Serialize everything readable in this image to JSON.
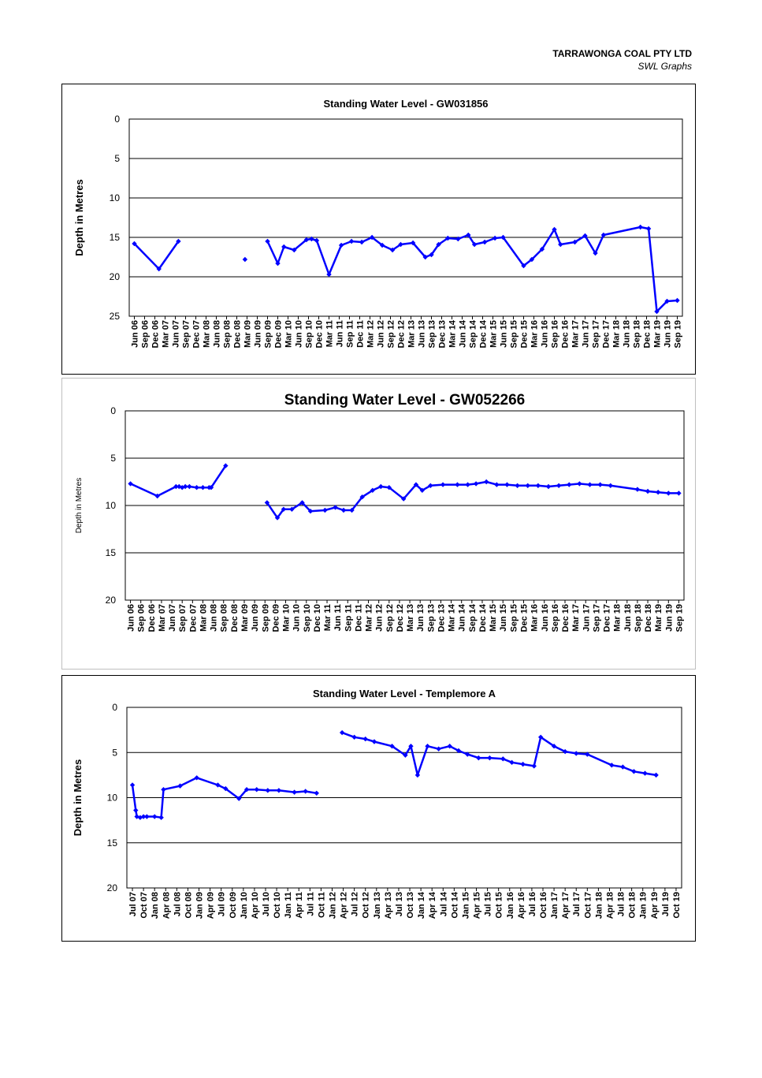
{
  "header": {
    "company": "TARRAWONGA COAL PTY LTD",
    "subtitle": "SWL Graphs"
  },
  "chart_data": [
    {
      "type": "line",
      "title": "Standing Water Level - GW031856",
      "ylabel": "Depth in Metres",
      "xlabel": "",
      "ylim": [
        0,
        25
      ],
      "y_inverted": true,
      "yticks": [
        0,
        5,
        10,
        15,
        20,
        25
      ],
      "grid": true,
      "legend": "none",
      "color": "#0000ff",
      "categories": [
        "Jun 06",
        "Sep 06",
        "Dec 06",
        "Mar 07",
        "Jun 07",
        "Sep 07",
        "Dec 07",
        "Mar 08",
        "Jun 08",
        "Sep 08",
        "Dec 08",
        "Mar 09",
        "Jun 09",
        "Sep 09",
        "Dec 09",
        "Mar 10",
        "Jun 10",
        "Sep 10",
        "Dec 10",
        "Mar 11",
        "Jun 11",
        "Sep 11",
        "Dec 11",
        "Mar 12",
        "Jun 12",
        "Sep 12",
        "Dec 12",
        "Mar 13",
        "Jun 13",
        "Sep 13",
        "Dec 13",
        "Mar 14",
        "Jun 14",
        "Sep 14",
        "Dec 14",
        "Mar 15",
        "Jun 15",
        "Sep 15",
        "Dec 15",
        "Mar 16",
        "Jun 16",
        "Sep 16",
        "Dec 16",
        "Mar 17",
        "Jun 17",
        "Sep 17",
        "Dec 17",
        "Mar 18",
        "Jun 18",
        "Sep 18",
        "Dec 18",
        "Mar 19",
        "Jun 19",
        "Sep 19"
      ],
      "segments": [
        [
          [
            0,
            15.8
          ],
          [
            2.4,
            19.0
          ],
          [
            4.3,
            15.5
          ]
        ],
        [
          [
            10.8,
            17.8
          ]
        ],
        [
          [
            13.0,
            15.5
          ],
          [
            14.0,
            18.3
          ],
          [
            14.6,
            16.2
          ],
          [
            15.6,
            16.6
          ],
          [
            16.8,
            15.3
          ],
          [
            17.3,
            15.2
          ],
          [
            17.8,
            15.4
          ],
          [
            19.0,
            19.7
          ],
          [
            20.2,
            16.0
          ],
          [
            21.2,
            15.5
          ],
          [
            22.2,
            15.6
          ],
          [
            23.2,
            15.0
          ],
          [
            24.2,
            16.0
          ],
          [
            25.2,
            16.6
          ],
          [
            26.0,
            15.9
          ],
          [
            27.2,
            15.7
          ],
          [
            28.4,
            17.5
          ],
          [
            29.0,
            17.2
          ],
          [
            29.7,
            15.9
          ],
          [
            30.6,
            15.1
          ],
          [
            31.6,
            15.2
          ],
          [
            32.6,
            14.7
          ],
          [
            33.2,
            15.9
          ],
          [
            34.2,
            15.6
          ],
          [
            35.2,
            15.1
          ],
          [
            36.0,
            15.0
          ],
          [
            38.0,
            18.6
          ],
          [
            38.8,
            17.8
          ],
          [
            39.8,
            16.5
          ],
          [
            41.0,
            14.0
          ],
          [
            41.6,
            15.9
          ],
          [
            43.0,
            15.6
          ],
          [
            44.0,
            14.8
          ],
          [
            45.0,
            17.0
          ],
          [
            45.8,
            14.7
          ],
          [
            49.4,
            13.7
          ],
          [
            50.2,
            13.9
          ],
          [
            51.0,
            24.4
          ],
          [
            52.0,
            23.1
          ],
          [
            53.0,
            23.0
          ]
        ]
      ]
    },
    {
      "type": "line",
      "title": "Standing Water Level - GW052266",
      "ylabel": "Depth in Metres",
      "xlabel": "",
      "ylim": [
        0,
        20
      ],
      "y_inverted": true,
      "yticks": [
        0,
        5,
        10,
        15,
        20
      ],
      "grid": true,
      "legend": "none",
      "color": "#0000ff",
      "categories": [
        "Jun 06",
        "Sep 06",
        "Dec 06",
        "Mar 07",
        "Jun 07",
        "Sep 07",
        "Dec 07",
        "Mar 08",
        "Jun 08",
        "Sep 08",
        "Dec 08",
        "Mar 09",
        "Jun 09",
        "Sep 09",
        "Dec 09",
        "Mar 10",
        "Jun 10",
        "Sep 10",
        "Dec 10",
        "Mar 11",
        "Jun 11",
        "Sep 11",
        "Dec 11",
        "Mar 12",
        "Jun 12",
        "Sep 12",
        "Dec 12",
        "Mar 13",
        "Jun 13",
        "Sep 13",
        "Dec 13",
        "Mar 14",
        "Jun 14",
        "Sep 14",
        "Dec 14",
        "Mar 15",
        "Jun 15",
        "Sep 15",
        "Dec 15",
        "Mar 16",
        "Jun 16",
        "Sep 16",
        "Dec 16",
        "Mar 17",
        "Jun 17",
        "Sep 17",
        "Dec 17",
        "Mar 18",
        "Jun 18",
        "Sep 18",
        "Dec 18",
        "Mar 19",
        "Jun 19",
        "Sep 19"
      ],
      "segments": [
        [
          [
            0,
            7.7
          ],
          [
            2.6,
            9.0
          ],
          [
            4.4,
            8.0
          ],
          [
            4.7,
            8.0
          ],
          [
            5.0,
            8.1
          ],
          [
            5.3,
            8.0
          ],
          [
            5.7,
            8.0
          ],
          [
            6.4,
            8.1
          ],
          [
            7.0,
            8.1
          ],
          [
            7.6,
            8.1
          ],
          [
            7.8,
            8.1
          ],
          [
            9.2,
            5.8
          ]
        ],
        [
          [
            13.2,
            9.7
          ],
          [
            14.2,
            11.3
          ],
          [
            14.8,
            10.4
          ],
          [
            15.6,
            10.4
          ],
          [
            16.6,
            9.7
          ],
          [
            17.4,
            10.6
          ],
          [
            18.8,
            10.5
          ],
          [
            19.8,
            10.2
          ],
          [
            20.6,
            10.5
          ],
          [
            21.4,
            10.5
          ],
          [
            22.4,
            9.1
          ],
          [
            23.4,
            8.4
          ],
          [
            24.2,
            8.0
          ],
          [
            25.0,
            8.1
          ],
          [
            26.4,
            9.3
          ],
          [
            27.6,
            7.8
          ],
          [
            28.2,
            8.4
          ],
          [
            29.0,
            7.9
          ],
          [
            30.2,
            7.8
          ],
          [
            31.6,
            7.8
          ],
          [
            32.6,
            7.8
          ],
          [
            33.4,
            7.7
          ],
          [
            34.4,
            7.5
          ],
          [
            35.4,
            7.8
          ],
          [
            36.4,
            7.8
          ],
          [
            37.4,
            7.9
          ],
          [
            38.4,
            7.9
          ],
          [
            39.4,
            7.9
          ],
          [
            40.4,
            8.0
          ],
          [
            41.4,
            7.9
          ],
          [
            42.4,
            7.8
          ],
          [
            43.4,
            7.7
          ],
          [
            44.4,
            7.8
          ],
          [
            45.4,
            7.8
          ],
          [
            46.4,
            7.9
          ],
          [
            49.0,
            8.3
          ],
          [
            50.0,
            8.5
          ],
          [
            51.0,
            8.6
          ],
          [
            52.0,
            8.7
          ],
          [
            53.0,
            8.7
          ]
        ]
      ]
    },
    {
      "type": "line",
      "title": "Standing Water Level - Templemore A",
      "ylabel": "Depth in Metres",
      "xlabel": "",
      "ylim": [
        0,
        20
      ],
      "y_inverted": true,
      "yticks": [
        0,
        5,
        10,
        15,
        20
      ],
      "grid": true,
      "legend": "none",
      "color": "#0000ff",
      "categories": [
        "Jul 07",
        "Oct 07",
        "Jan 08",
        "Apr 08",
        "Jul 08",
        "Oct 08",
        "Jan 09",
        "Apr 09",
        "Jul 09",
        "Oct 09",
        "Jan 10",
        "Apr 10",
        "Jul 10",
        "Oct 10",
        "Jan 11",
        "Apr 11",
        "Jul 11",
        "Oct 11",
        "Jan 12",
        "Apr 12",
        "Jul 12",
        "Oct 12",
        "Jan 13",
        "Apr 13",
        "Jul 13",
        "Oct 13",
        "Jan 14",
        "Apr 14",
        "Jul 14",
        "Oct 14",
        "Jan 15",
        "Apr 15",
        "Jul 15",
        "Oct 15",
        "Jan 16",
        "Apr 16",
        "Jul 16",
        "Oct 16",
        "Jan 17",
        "Apr 17",
        "Jul 17",
        "Oct 17",
        "Jan 18",
        "Apr 18",
        "Jul 18",
        "Oct 18",
        "Jan 19",
        "Apr 19",
        "Jul 19",
        "Oct 19"
      ],
      "segments": [
        [
          [
            0,
            8.6
          ],
          [
            0.3,
            11.4
          ],
          [
            0.4,
            12.1
          ],
          [
            0.7,
            12.2
          ],
          [
            1.0,
            12.1
          ],
          [
            1.3,
            12.1
          ],
          [
            2.0,
            12.1
          ],
          [
            2.6,
            12.2
          ],
          [
            2.8,
            9.1
          ],
          [
            4.3,
            8.7
          ],
          [
            5.8,
            7.8
          ],
          [
            7.7,
            8.6
          ],
          [
            8.4,
            9.0
          ],
          [
            9.6,
            10.1
          ],
          [
            10.3,
            9.1
          ],
          [
            11.2,
            9.1
          ],
          [
            12.2,
            9.2
          ],
          [
            13.2,
            9.2
          ],
          [
            14.6,
            9.4
          ],
          [
            15.6,
            9.3
          ],
          [
            16.6,
            9.5
          ]
        ],
        [
          [
            18.9,
            2.8
          ],
          [
            20.0,
            3.3
          ],
          [
            21.0,
            3.5
          ],
          [
            21.8,
            3.8
          ],
          [
            23.4,
            4.3
          ],
          [
            24.6,
            5.3
          ],
          [
            25.1,
            4.3
          ],
          [
            25.7,
            7.5
          ],
          [
            26.6,
            4.3
          ],
          [
            27.6,
            4.6
          ],
          [
            28.6,
            4.3
          ],
          [
            29.4,
            4.8
          ],
          [
            30.2,
            5.2
          ],
          [
            31.2,
            5.6
          ],
          [
            32.2,
            5.6
          ],
          [
            33.4,
            5.7
          ],
          [
            34.2,
            6.1
          ],
          [
            35.2,
            6.3
          ],
          [
            36.2,
            6.5
          ],
          [
            36.8,
            3.3
          ],
          [
            38.0,
            4.3
          ],
          [
            39.0,
            4.9
          ],
          [
            40.0,
            5.1
          ],
          [
            41.0,
            5.2
          ],
          [
            43.2,
            6.4
          ],
          [
            44.2,
            6.6
          ],
          [
            45.2,
            7.1
          ],
          [
            46.2,
            7.3
          ],
          [
            47.2,
            7.5
          ]
        ]
      ]
    }
  ]
}
